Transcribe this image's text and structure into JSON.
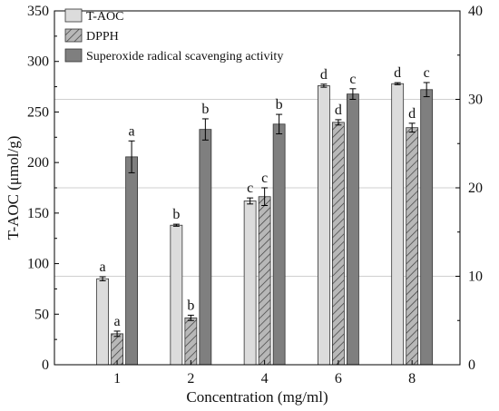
{
  "chart_data": {
    "type": "bar",
    "categories": [
      "1",
      "2",
      "4",
      "6",
      "8"
    ],
    "xlabel": "Concentration (mg/ml)",
    "ylabel": "T-AOC (μmol/g)",
    "ylim": [
      0,
      350
    ],
    "y_ticks": [
      0,
      50,
      100,
      150,
      200,
      250,
      300,
      350
    ],
    "y2lim": [
      0,
      40
    ],
    "y2_ticks": [
      0,
      10,
      20,
      30,
      40
    ],
    "grid": "horizontal reference lines at right-axis 10, 20, 30",
    "legend_position": "top-left",
    "series": [
      {
        "name": "T-AOC",
        "axis": "left",
        "pattern": "solid",
        "color": "#dcdcdc",
        "values": [
          85,
          138,
          162,
          276,
          278
        ],
        "errors": [
          2,
          1,
          3,
          1.5,
          1
        ],
        "labels": [
          "a",
          "b",
          "c",
          "d",
          "d"
        ]
      },
      {
        "name": "DPPH",
        "axis": "right",
        "pattern": "hatched",
        "color": "#b8b8b8",
        "values": [
          3.5,
          5.3,
          19.0,
          27.4,
          26.8
        ],
        "errors": [
          0.3,
          0.3,
          1.0,
          0.3,
          0.5
        ],
        "labels": [
          "a",
          "b",
          "c",
          "d",
          "d"
        ]
      },
      {
        "name": "Superoxide radical scavenging activity",
        "axis": "right",
        "pattern": "solid",
        "color": "#7f7f7f",
        "values": [
          23.5,
          26.6,
          27.2,
          30.6,
          31.1
        ],
        "errors": [
          1.8,
          1.2,
          1.1,
          0.6,
          0.8
        ],
        "labels": [
          "a",
          "b",
          "b",
          "c",
          "c"
        ]
      }
    ]
  }
}
